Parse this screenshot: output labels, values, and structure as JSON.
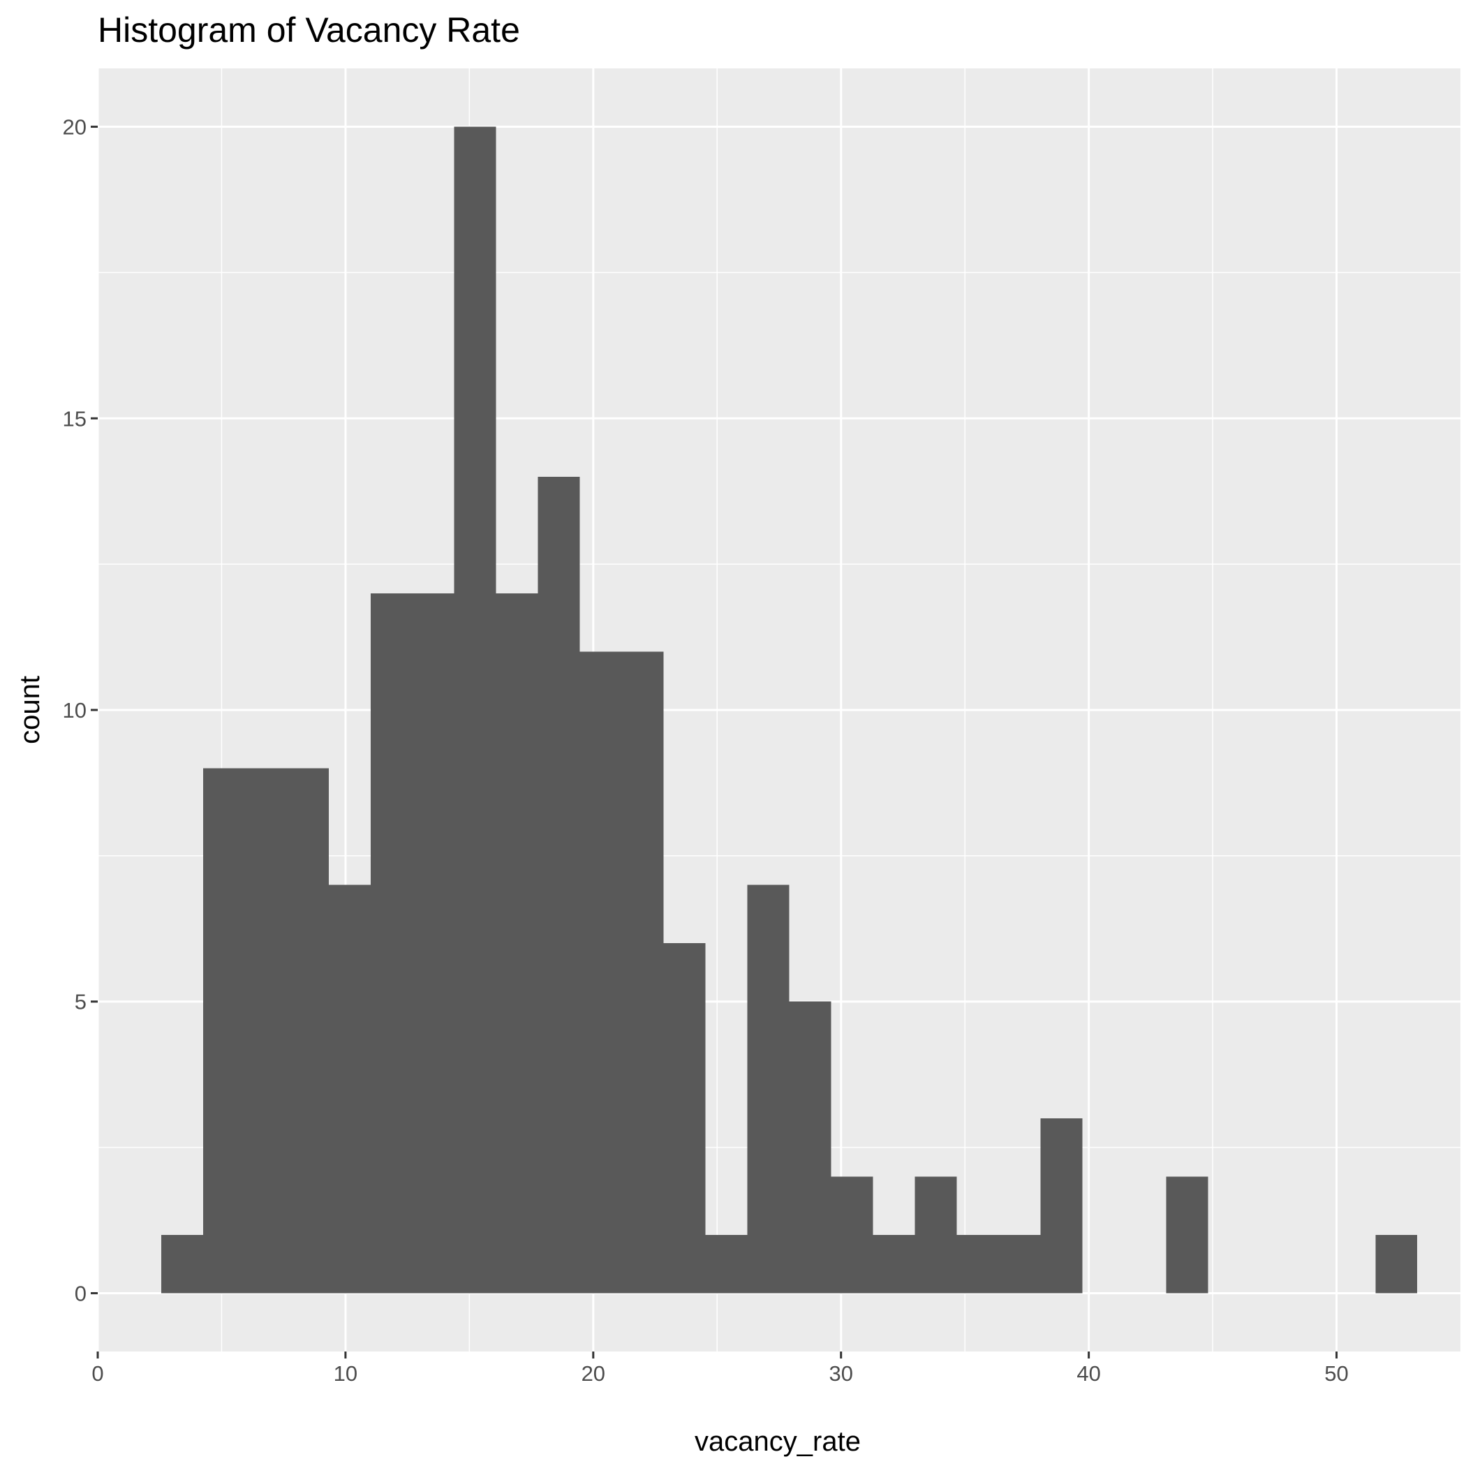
{
  "chart_data": {
    "type": "histogram",
    "title": "Histogram of Vacancy Rate",
    "xlabel": "vacancy_rate",
    "ylabel": "count",
    "xlim": [
      0,
      55
    ],
    "ylim": [
      -1,
      21
    ],
    "x_ticks": [
      0,
      10,
      20,
      30,
      40,
      50
    ],
    "y_ticks": [
      0,
      5,
      10,
      15,
      20
    ],
    "grid": true,
    "bin_width": 1.69,
    "bins": [
      {
        "x0": 2.56,
        "x1": 4.25,
        "count": 1
      },
      {
        "x0": 4.25,
        "x1": 5.94,
        "count": 9
      },
      {
        "x0": 5.94,
        "x1": 7.63,
        "count": 9
      },
      {
        "x0": 7.63,
        "x1": 9.32,
        "count": 9
      },
      {
        "x0": 9.32,
        "x1": 11.01,
        "count": 7
      },
      {
        "x0": 11.01,
        "x1": 12.7,
        "count": 12
      },
      {
        "x0": 12.7,
        "x1": 14.39,
        "count": 12
      },
      {
        "x0": 14.39,
        "x1": 16.08,
        "count": 20
      },
      {
        "x0": 16.08,
        "x1": 17.77,
        "count": 12
      },
      {
        "x0": 17.77,
        "x1": 19.46,
        "count": 14
      },
      {
        "x0": 19.46,
        "x1": 21.15,
        "count": 11
      },
      {
        "x0": 21.15,
        "x1": 22.84,
        "count": 11
      },
      {
        "x0": 22.84,
        "x1": 24.53,
        "count": 6
      },
      {
        "x0": 24.53,
        "x1": 26.22,
        "count": 1
      },
      {
        "x0": 26.22,
        "x1": 27.91,
        "count": 7
      },
      {
        "x0": 27.91,
        "x1": 29.6,
        "count": 5
      },
      {
        "x0": 29.6,
        "x1": 31.29,
        "count": 2
      },
      {
        "x0": 31.29,
        "x1": 32.98,
        "count": 1
      },
      {
        "x0": 32.98,
        "x1": 34.67,
        "count": 2
      },
      {
        "x0": 34.67,
        "x1": 36.36,
        "count": 1
      },
      {
        "x0": 36.36,
        "x1": 38.05,
        "count": 1
      },
      {
        "x0": 38.05,
        "x1": 39.74,
        "count": 3
      },
      {
        "x0": 39.74,
        "x1": 41.43,
        "count": 0
      },
      {
        "x0": 41.43,
        "x1": 43.12,
        "count": 0
      },
      {
        "x0": 43.12,
        "x1": 44.81,
        "count": 2
      },
      {
        "x0": 44.81,
        "x1": 46.5,
        "count": 0
      },
      {
        "x0": 46.5,
        "x1": 48.19,
        "count": 0
      },
      {
        "x0": 48.19,
        "x1": 49.88,
        "count": 0
      },
      {
        "x0": 49.88,
        "x1": 51.57,
        "count": 0
      },
      {
        "x0": 51.57,
        "x1": 53.26,
        "count": 1
      }
    ],
    "colors": {
      "bar_fill": "#595959",
      "panel_background": "#ebebeb",
      "grid_line": "#ffffff",
      "tick_label": "#4d4d4d",
      "tick_mark": "#333333"
    }
  }
}
